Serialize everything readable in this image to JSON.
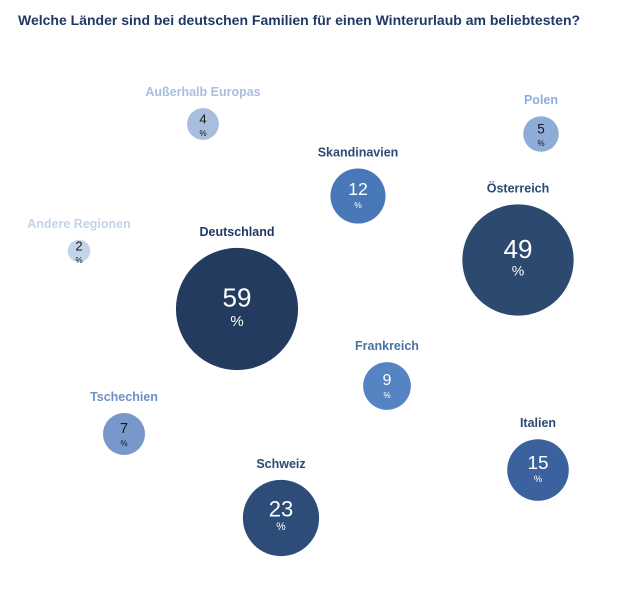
{
  "chart_data": {
    "type": "bubble",
    "title": "Welche Länder sind bei deutschen Familien für einen Winterurlaub am beliebtesten?",
    "unit": "%",
    "points": [
      {
        "label": "Außerhalb Europas",
        "value": 4,
        "color": "#a9bedf",
        "label_color": "#a9bedf"
      },
      {
        "label": "Polen",
        "value": 5,
        "color": "#8eacd8",
        "label_color": "#8eacd8"
      },
      {
        "label": "Skandinavien",
        "value": 12,
        "color": "#4878b8",
        "label_color": "#2b4a74"
      },
      {
        "label": "Österreich",
        "value": 49,
        "color": "#2c4a70",
        "label_color": "#2b4a74"
      },
      {
        "label": "Andere Regionen",
        "value": 2,
        "color": "#c3d3e8",
        "label_color": "#c3d3e8"
      },
      {
        "label": "Deutschland",
        "value": 59,
        "color": "#233b5e",
        "label_color": "#1f3864"
      },
      {
        "label": "Frankreich",
        "value": 9,
        "color": "#5683c2",
        "label_color": "#4a72a8"
      },
      {
        "label": "Tschechien",
        "value": 7,
        "color": "#7898cc",
        "label_color": "#6e90c6"
      },
      {
        "label": "Italien",
        "value": 15,
        "color": "#3b629f",
        "label_color": "#2b4a74"
      },
      {
        "label": "Schweiz",
        "value": 23,
        "color": "#2d4d78",
        "label_color": "#2b4a74"
      }
    ]
  }
}
